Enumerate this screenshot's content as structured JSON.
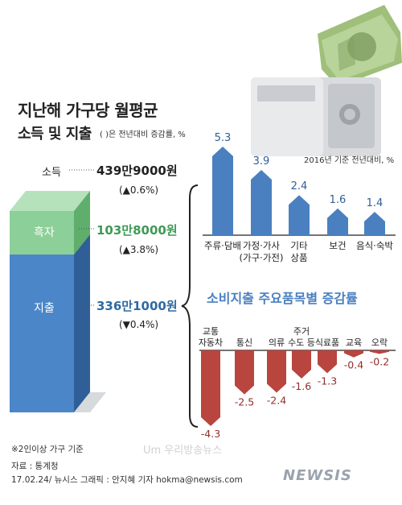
{
  "header": {
    "title": "지난해 가구당 월평균",
    "subtitle": "소득 및 지출",
    "subtitle_note": "( )은 전년대비 증감률, %"
  },
  "income_panel": {
    "items": [
      {
        "label": "소득",
        "amount": "439만9000원",
        "change": "(▲0.6%)",
        "color": "#222222"
      },
      {
        "label": "흑자",
        "amount": "103만8000원",
        "change": "(▲3.8%)",
        "color": "#3f9a56"
      },
      {
        "label": "지출",
        "amount": "336만1000원",
        "change": "(▼0.4%)",
        "color": "#2f6aa3"
      }
    ]
  },
  "colors": {
    "increase": "#4a80c0",
    "decrease": "#b8453e",
    "surplus": "#8dcf98",
    "expenditure": "#4a86c8",
    "section_title": "#4a80c0"
  },
  "chart_data": [
    {
      "type": "bar",
      "note": "2016년 기준 전년대비, %",
      "categories": [
        "주류·담배",
        "가정·가사 (가구·가전)",
        "기타 상품",
        "보건",
        "음식·숙박"
      ],
      "category_lines": [
        [
          "주류·담배"
        ],
        [
          "가정·가사",
          "(가구·가전)"
        ],
        [
          "기타",
          "상품"
        ],
        [
          "보건"
        ],
        [
          "음식·숙박"
        ]
      ],
      "values": [
        5.3,
        3.9,
        2.4,
        1.6,
        1.4
      ],
      "value_labels": [
        "5.3",
        "3.9",
        "2.4",
        "1.6",
        "1.4"
      ],
      "ylim": [
        0,
        5.3
      ]
    },
    {
      "type": "bar",
      "title": "소비지출 주요품목별 증감률",
      "categories": [
        "교통 자동차",
        "통신",
        "의류",
        "주거 수도 등",
        "식료품",
        "교육",
        "오락"
      ],
      "category_lines": [
        [
          "교통",
          "자동차"
        ],
        [
          "통신"
        ],
        [
          "의류"
        ],
        [
          "주거",
          "수도 등"
        ],
        [
          "식료품"
        ],
        [
          "교육"
        ],
        [
          "오락"
        ]
      ],
      "values": [
        -4.3,
        -2.5,
        -2.4,
        -1.6,
        -1.3,
        -0.4,
        -0.2
      ],
      "value_labels": [
        "-4.3",
        "-2.5",
        "-2.4",
        "-1.6",
        "-1.3",
        "-0.4",
        "-0.2"
      ],
      "ylim": [
        -4.3,
        0
      ]
    }
  ],
  "footer": {
    "note": "※2인이상 가구 기준",
    "source": "자료 : 통계청",
    "credit": "17.02.24/ 뉴시스 그래픽 : 안지혜 기자 hokma@newsis.com",
    "brand": "NEWSIS",
    "watermark": "Um 우리방송뉴스"
  }
}
